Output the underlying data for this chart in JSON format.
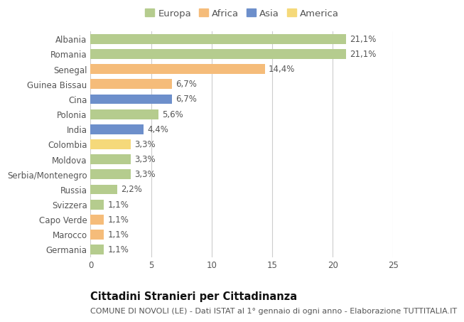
{
  "categories": [
    "Albania",
    "Romania",
    "Senegal",
    "Guinea Bissau",
    "Cina",
    "Polonia",
    "India",
    "Colombia",
    "Moldova",
    "Serbia/Montenegro",
    "Russia",
    "Svizzera",
    "Capo Verde",
    "Marocco",
    "Germania"
  ],
  "values": [
    21.1,
    21.1,
    14.4,
    6.7,
    6.7,
    5.6,
    4.4,
    3.3,
    3.3,
    3.3,
    2.2,
    1.1,
    1.1,
    1.1,
    1.1
  ],
  "labels": [
    "21,1%",
    "21,1%",
    "14,4%",
    "6,7%",
    "6,7%",
    "5,6%",
    "4,4%",
    "3,3%",
    "3,3%",
    "3,3%",
    "2,2%",
    "1,1%",
    "1,1%",
    "1,1%",
    "1,1%"
  ],
  "colors": [
    "#b5cc8e",
    "#b5cc8e",
    "#f5bc7a",
    "#f5bc7a",
    "#6d8fcb",
    "#b5cc8e",
    "#6d8fcb",
    "#f5d97a",
    "#b5cc8e",
    "#b5cc8e",
    "#b5cc8e",
    "#b5cc8e",
    "#f5bc7a",
    "#f5bc7a",
    "#b5cc8e"
  ],
  "legend_labels": [
    "Europa",
    "Africa",
    "Asia",
    "America"
  ],
  "legend_colors": [
    "#b5cc8e",
    "#f5bc7a",
    "#6d8fcb",
    "#f5d97a"
  ],
  "title": "Cittadini Stranieri per Cittadinanza",
  "subtitle": "COMUNE DI NOVOLI (LE) - Dati ISTAT al 1° gennaio di ogni anno - Elaborazione TUTTITALIA.IT",
  "xlim": [
    0,
    25
  ],
  "xticks": [
    0,
    5,
    10,
    15,
    20,
    25
  ],
  "bg_color": "#ffffff",
  "grid_color": "#cccccc",
  "bar_height": 0.65,
  "title_fontsize": 10.5,
  "subtitle_fontsize": 8,
  "label_fontsize": 8.5,
  "tick_fontsize": 8.5,
  "legend_fontsize": 9.5
}
